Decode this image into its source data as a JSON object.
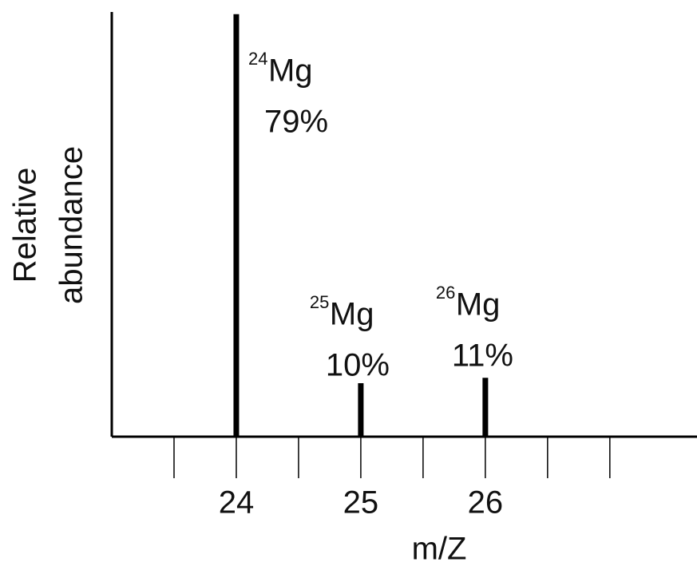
{
  "chart_data": {
    "type": "stick",
    "x": [
      24,
      25,
      26
    ],
    "values": [
      79,
      10,
      11
    ],
    "value_labels": [
      "79%",
      "10%",
      "11%"
    ],
    "element": "Mg",
    "color": "#000000",
    "xlim": [
      23,
      27.7
    ],
    "xticks": [
      24,
      25,
      26
    ],
    "xminor_ticks": [
      23.5,
      24.5,
      25.5,
      26.5,
      27
    ],
    "ylim": [
      0,
      80
    ],
    "xlabel": "m/Z",
    "ylabel": [
      "Relative",
      "abundance"
    ]
  }
}
